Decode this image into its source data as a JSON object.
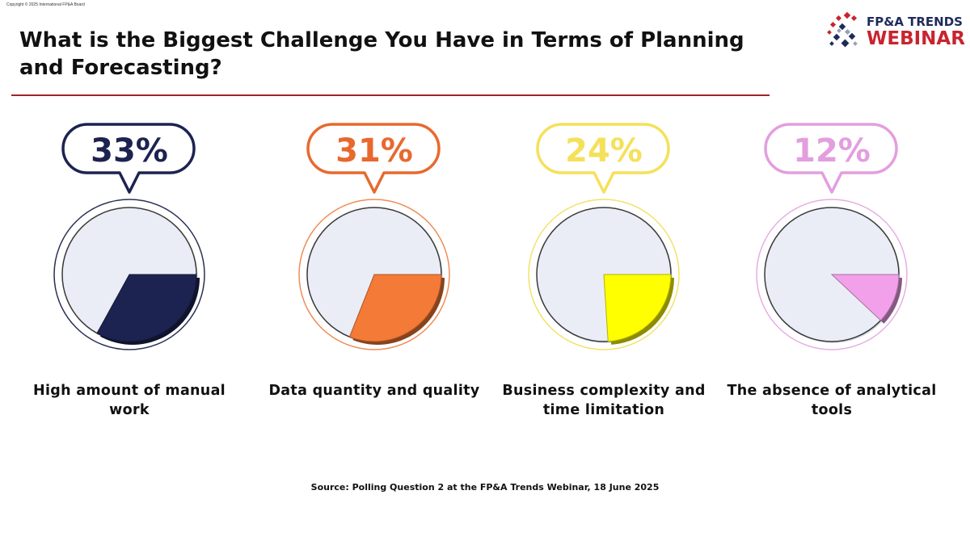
{
  "copyright": "Copyright © 2025 International FP&A Board",
  "title": "What is the Biggest Challenge You Have in Terms of Planning and Forecasting?",
  "logo": {
    "line1": "FP&A TRENDS",
    "line2": "WEBINAR"
  },
  "source": "Source: Polling Question 2 at the FP&A Trends Webinar, 18 June 2025",
  "colors": {
    "rule": "#a32224",
    "pie_background": "#eaedf5"
  },
  "chart_data": {
    "type": "pie",
    "title": "What is the Biggest Challenge You Have in Terms of Planning and Forecasting?",
    "items": [
      {
        "label": "High amount of manual work",
        "percent_label": "33%",
        "value": 33,
        "color": "#1d2350",
        "text_color": "#1d2350",
        "bubble_color": "#1d2350",
        "ring_color": "#2a2f55"
      },
      {
        "label": "Data quantity and quality",
        "percent_label": "31%",
        "value": 31,
        "color": "#f47a37",
        "text_color": "#e8692e",
        "bubble_color": "#e8692e",
        "ring_color": "#ef8c55"
      },
      {
        "label": "Business complexity and time limitation",
        "percent_label": "24%",
        "value": 24,
        "color": "#ffff00",
        "text_color": "#f5e05a",
        "bubble_color": "#f5e05a",
        "ring_color": "#f2e268"
      },
      {
        "label": "The absence of analytical tools",
        "percent_label": "12%",
        "value": 12,
        "color": "#f2a0ea",
        "text_color": "#e39ede",
        "bubble_color": "#e39ede",
        "ring_color": "#e7aee2"
      }
    ]
  }
}
